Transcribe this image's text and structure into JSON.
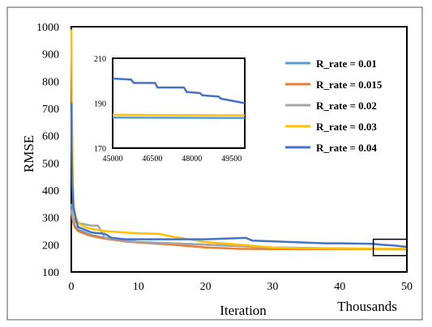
{
  "chart_data": [
    {
      "type": "line",
      "title": "",
      "xlabel": "Iteration",
      "xunit_label": "Thousands",
      "ylabel": "RMSE",
      "xlim": [
        0,
        50
      ],
      "ylim": [
        100,
        1000
      ],
      "xticks": [
        0,
        10,
        20,
        30,
        40,
        50
      ],
      "yticks": [
        100,
        200,
        300,
        400,
        500,
        600,
        700,
        800,
        900,
        1000
      ],
      "grid": false,
      "legend_position": "top-right",
      "highlight_box": {
        "x": [
          45,
          50
        ],
        "y": [
          160,
          220
        ]
      },
      "series": [
        {
          "name": "R_rate = 0.01",
          "color": "#5b9bd5",
          "x": [
            0,
            0.2,
            0.5,
            1,
            2,
            3,
            5,
            8,
            10,
            15,
            20,
            25,
            30,
            35,
            40,
            45,
            50
          ],
          "y": [
            350,
            300,
            270,
            255,
            245,
            235,
            225,
            215,
            210,
            205,
            200,
            195,
            190,
            188,
            186,
            184,
            183
          ]
        },
        {
          "name": "R_rate = 0.015",
          "color": "#ed7d31",
          "x": [
            0,
            0.2,
            0.5,
            1,
            2,
            3,
            5,
            8,
            10,
            15,
            20,
            25,
            30,
            35,
            40,
            45,
            50
          ],
          "y": [
            320,
            290,
            265,
            250,
            240,
            232,
            222,
            212,
            208,
            200,
            190,
            185,
            184,
            184,
            184,
            184,
            184
          ]
        },
        {
          "name": "R_rate = 0.02",
          "color": "#a5a5a5",
          "x": [
            0,
            0.2,
            0.5,
            1,
            2,
            3,
            4,
            5,
            8,
            10,
            15,
            20,
            25,
            30,
            35,
            40,
            45,
            50
          ],
          "y": [
            330,
            300,
            285,
            280,
            275,
            270,
            270,
            225,
            215,
            210,
            205,
            200,
            195,
            190,
            188,
            186,
            185,
            184
          ]
        },
        {
          "name": "R_rate = 0.03",
          "color": "#ffc000",
          "x": [
            0,
            0.1,
            0.2,
            0.4,
            0.7,
            1,
            2,
            3,
            5,
            8,
            10,
            13,
            15,
            20,
            25,
            30,
            35,
            40,
            45,
            50
          ],
          "y": [
            990,
            700,
            450,
            330,
            300,
            280,
            265,
            258,
            250,
            245,
            242,
            240,
            230,
            210,
            200,
            190,
            187,
            186,
            185,
            185
          ]
        },
        {
          "name": "R_rate = 0.04",
          "color": "#4472c4",
          "x": [
            0,
            0.05,
            0.15,
            0.3,
            0.6,
            1,
            2,
            3,
            5,
            6,
            8,
            10,
            15,
            20,
            26,
            27,
            38,
            40,
            45,
            46,
            48,
            50
          ],
          "y": [
            720,
            560,
            420,
            340,
            300,
            265,
            255,
            245,
            240,
            225,
            220,
            220,
            220,
            220,
            225,
            215,
            205,
            205,
            203,
            200,
            197,
            192
          ]
        }
      ]
    },
    {
      "type": "line",
      "title": "",
      "xlim": [
        45000,
        50000
      ],
      "ylim": [
        170,
        210
      ],
      "xticks": [
        45000,
        46500,
        48000,
        49500
      ],
      "yticks": [
        170,
        190,
        210
      ],
      "grid": false,
      "series": [
        {
          "name": "R_rate = 0.04",
          "color": "#4472c4",
          "x": [
            45000,
            45700,
            45800,
            46600,
            46700,
            47700,
            47800,
            48300,
            48400,
            49000,
            49100,
            50000
          ],
          "y": [
            201,
            200.5,
            199,
            199,
            197,
            197,
            195,
            194.5,
            193.5,
            193,
            192,
            190
          ]
        },
        {
          "name": "R_rate = 0.03",
          "color": "#ffc000",
          "x": [
            45000,
            50000
          ],
          "y": [
            184.8,
            184.6
          ]
        },
        {
          "name": "R_rate = 0.01",
          "color": "#5b9bd5",
          "x": [
            45000,
            50000
          ],
          "y": [
            183.6,
            183.4
          ]
        }
      ]
    }
  ]
}
